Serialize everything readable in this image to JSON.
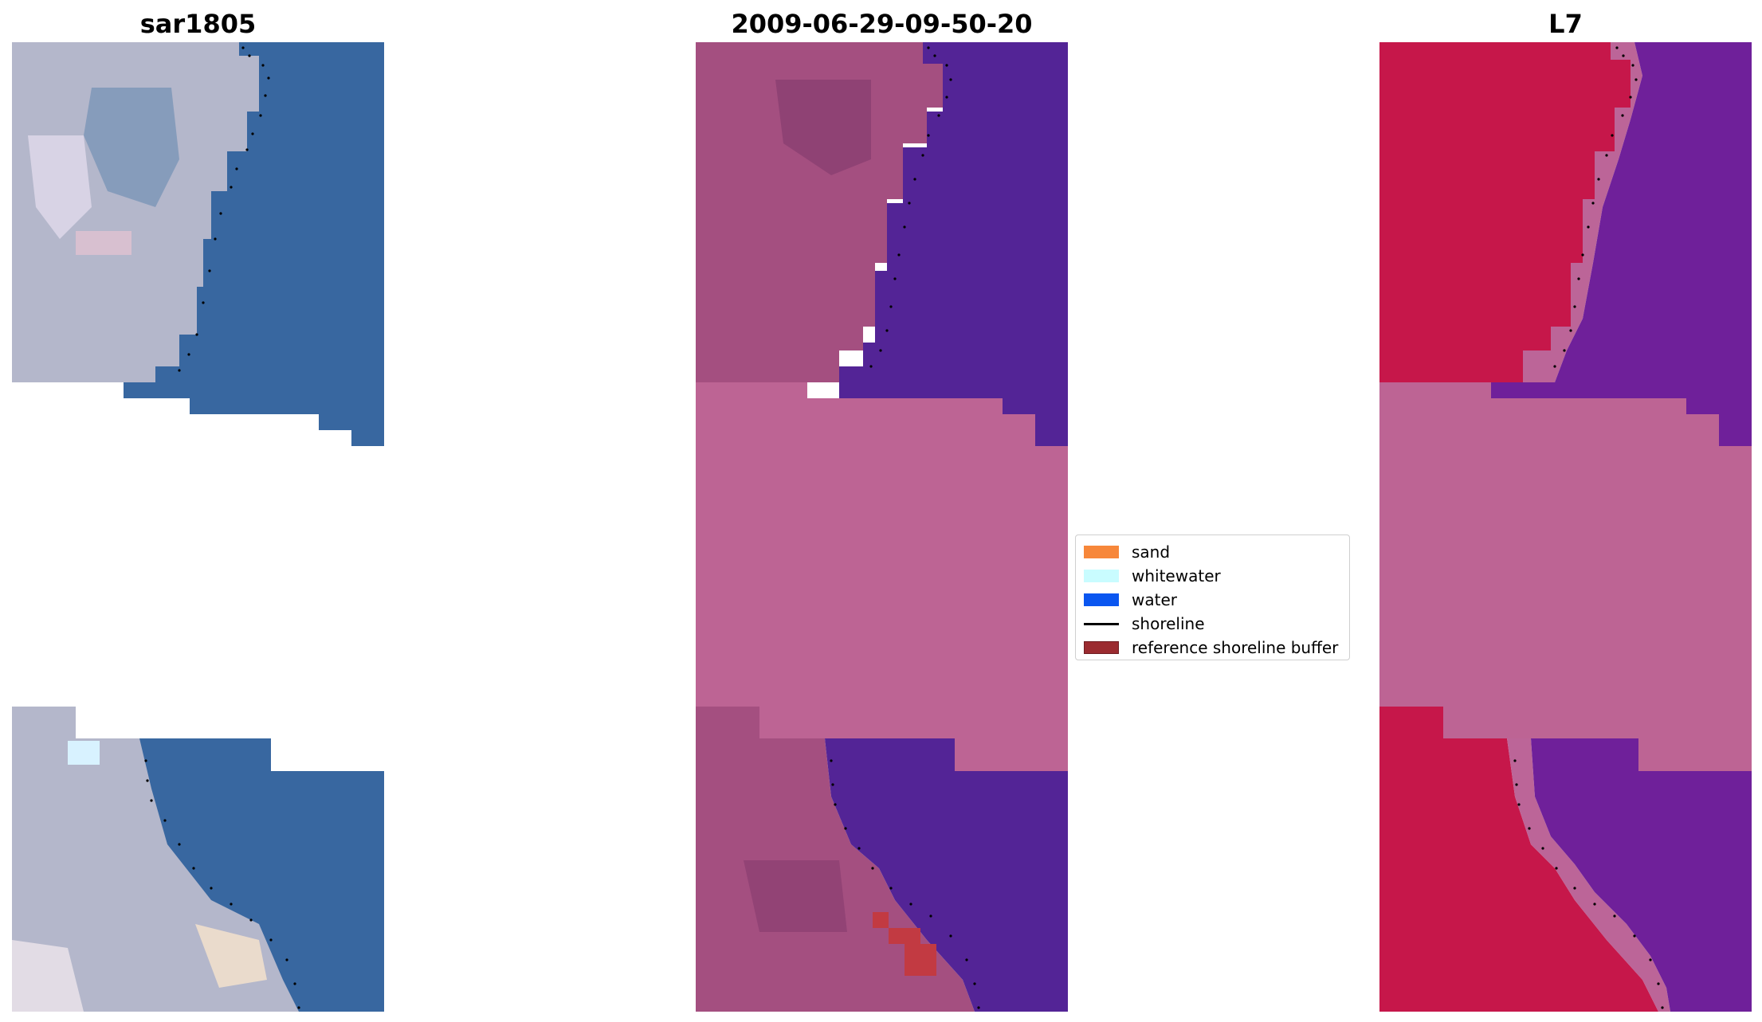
{
  "figure": {
    "panels": [
      {
        "title": "sar1805"
      },
      {
        "title": "2009-06-29-09-50-20"
      },
      {
        "title": "L7"
      }
    ],
    "legend": {
      "items": [
        {
          "label": "sand",
          "color": "#f7873a",
          "kind": "patch"
        },
        {
          "label": "whitewater",
          "color": "#c9fcff",
          "kind": "patch"
        },
        {
          "label": "water",
          "color": "#0a56f0",
          "kind": "patch"
        },
        {
          "label": "shoreline",
          "color": "#000000",
          "kind": "line"
        },
        {
          "label": "reference shoreline buffer",
          "color": "#9b2b30",
          "kind": "patch"
        }
      ]
    },
    "colors": {
      "rgb_water": "#3867a0",
      "rgb_land": "#b7b9cc",
      "nodata_mask": "#bd6494",
      "classified_water": "#532496",
      "classified_land": "#a44f80",
      "mndwi_land": "#c6174a",
      "mndwi_water": "#6f209a",
      "buffer_red": "#c23a42"
    }
  }
}
